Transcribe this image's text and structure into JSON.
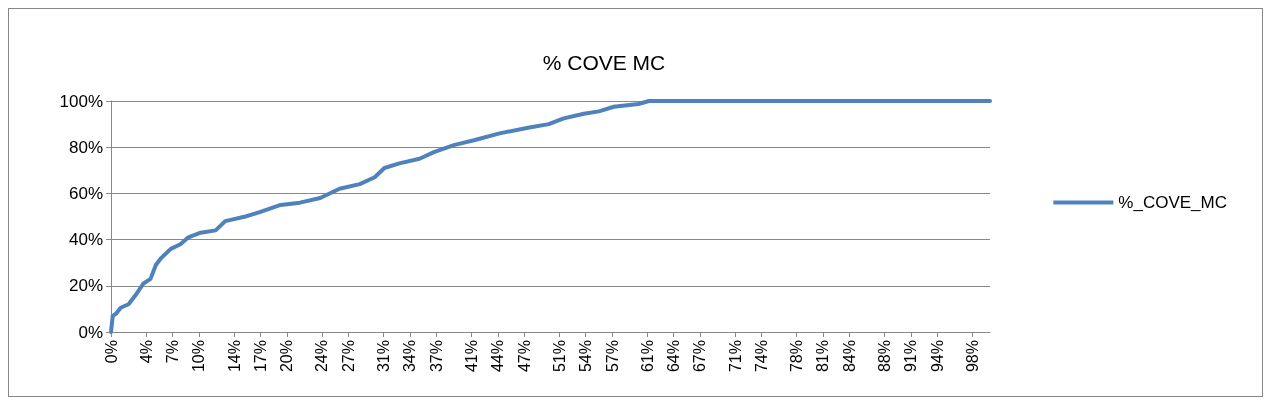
{
  "chart_data": {
    "type": "line",
    "title": "% COVE MC",
    "x": [
      0,
      0.2,
      0.6,
      1.1,
      2.0,
      2.8,
      3.7,
      4.5,
      5.1,
      5.7,
      6.8,
      7.9,
      8.8,
      10.2,
      11.9,
      13.0,
      15.3,
      17.0,
      19.3,
      21.5,
      23.8,
      26.0,
      28.3,
      30.0,
      31.1,
      32.8,
      35.1,
      36.8,
      39.1,
      41.3,
      44.2,
      47.6,
      49.8,
      51.5,
      53.8,
      55.5,
      57.2,
      60.0,
      61.2,
      100
    ],
    "series": [
      {
        "name": "%_COVE_MC",
        "color": "#4f81bd",
        "values": [
          0,
          7,
          8,
          10.5,
          12,
          16,
          21,
          23,
          29,
          32,
          36,
          38,
          41,
          43,
          44,
          48,
          50,
          52,
          55,
          56,
          58,
          62,
          64,
          67,
          71,
          73,
          75,
          78,
          81,
          83,
          86,
          88.5,
          90,
          92.5,
          94.5,
          95.5,
          97.5,
          98.7,
          100,
          100
        ]
      }
    ],
    "xlim": [
      0,
      100
    ],
    "xticks": [
      {
        "value": 0,
        "label": "0%"
      },
      {
        "value": 4,
        "label": "4%"
      },
      {
        "value": 7,
        "label": "7%"
      },
      {
        "value": 10,
        "label": "10%"
      },
      {
        "value": 14,
        "label": "14%"
      },
      {
        "value": 17,
        "label": "17%"
      },
      {
        "value": 20,
        "label": "20%"
      },
      {
        "value": 24,
        "label": "24%"
      },
      {
        "value": 27,
        "label": "27%"
      },
      {
        "value": 31,
        "label": "31%"
      },
      {
        "value": 34,
        "label": "34%"
      },
      {
        "value": 37,
        "label": "37%"
      },
      {
        "value": 41,
        "label": "41%"
      },
      {
        "value": 44,
        "label": "44%"
      },
      {
        "value": 47,
        "label": "47%"
      },
      {
        "value": 51,
        "label": "51%"
      },
      {
        "value": 54,
        "label": "54%"
      },
      {
        "value": 57,
        "label": "57%"
      },
      {
        "value": 61,
        "label": "61%"
      },
      {
        "value": 64,
        "label": "64%"
      },
      {
        "value": 67,
        "label": "67%"
      },
      {
        "value": 71,
        "label": "71%"
      },
      {
        "value": 74,
        "label": "74%"
      },
      {
        "value": 78,
        "label": "78%"
      },
      {
        "value": 81,
        "label": "81%"
      },
      {
        "value": 84,
        "label": "84%"
      },
      {
        "value": 88,
        "label": "88%"
      },
      {
        "value": 91,
        "label": "91%"
      },
      {
        "value": 94,
        "label": "94%"
      },
      {
        "value": 98,
        "label": "98%"
      }
    ],
    "ylim": [
      0,
      100
    ],
    "yticks": [
      {
        "value": 0,
        "label": "0%"
      },
      {
        "value": 20,
        "label": "20%"
      },
      {
        "value": 40,
        "label": "40%"
      },
      {
        "value": 60,
        "label": "60%"
      },
      {
        "value": 80,
        "label": "80%"
      },
      {
        "value": 100,
        "label": "100%"
      }
    ],
    "grid": "y",
    "legend": "right",
    "marker": "none",
    "line_style": "solid"
  }
}
